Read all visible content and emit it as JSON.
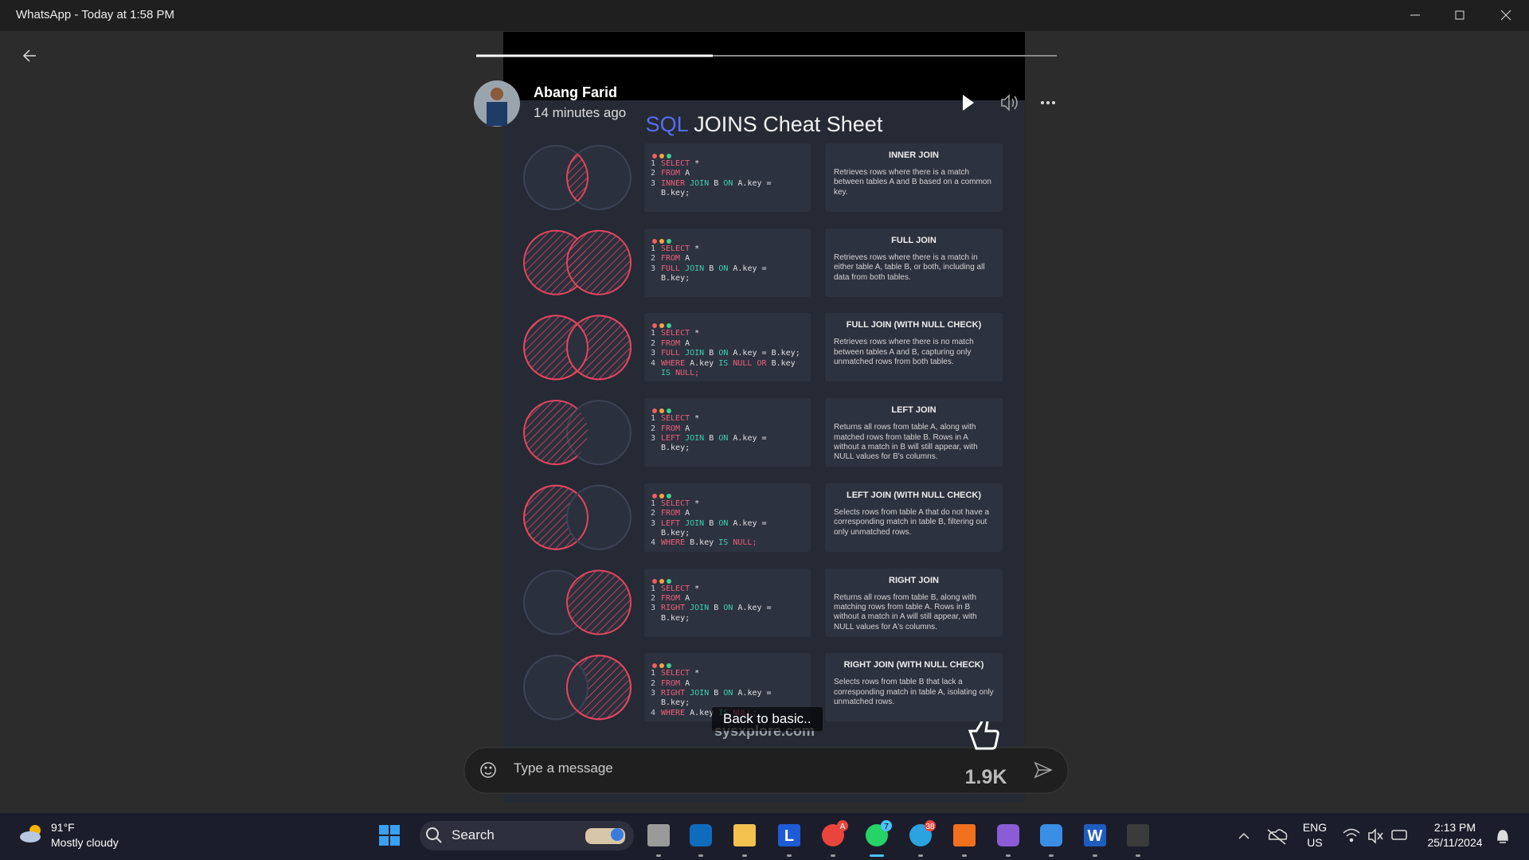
{
  "window": {
    "title": "WhatsApp - Today at 1:58 PM"
  },
  "status": {
    "author": "Abang Farid",
    "time": "14 minutes ago",
    "caption": "Back to basic..",
    "likes": "1.9K"
  },
  "sheet": {
    "title_highlight": "SQL",
    "title": "JOINS Cheat Sheet",
    "watermark": "sysxplore.com",
    "joins": [
      {
        "name": "INNER JOIN",
        "code": [
          {
            "num": 1,
            "text": "SELECT *"
          },
          {
            "num": 2,
            "text": "FROM A"
          },
          {
            "num": 3,
            "text": "INNER JOIN B ON A.key ="
          },
          {
            "text": "B.key;"
          }
        ],
        "description": "Retrieves rows where there is a match between tables A and B based on a common key."
      },
      {
        "name": "FULL JOIN",
        "code": [
          {
            "num": 1,
            "text": "SELECT *"
          },
          {
            "num": 2,
            "text": "FROM A"
          },
          {
            "num": 3,
            "text": "FULL JOIN B ON A.key ="
          },
          {
            "text": "B.key;"
          }
        ],
        "description": "Retrieves rows where there is a match in either table A, table B, or both, including all data from both tables."
      },
      {
        "name": "FULL JOIN (WITH NULL CHECK)",
        "code": [
          {
            "num": 1,
            "text": "SELECT *"
          },
          {
            "num": 2,
            "text": "FROM A"
          },
          {
            "num": 3,
            "text": "FULL JOIN B ON A.key = B.key;"
          },
          {
            "num": 4,
            "text": "WHERE A.key IS NULL OR B.key"
          },
          {
            "text": "IS NULL;"
          }
        ],
        "description": "Retrieves rows where there is no match between tables A and B, capturing only unmatched rows from both tables."
      },
      {
        "name": "LEFT JOIN",
        "code": [
          {
            "num": 1,
            "text": "SELECT *"
          },
          {
            "num": 2,
            "text": "FROM A"
          },
          {
            "num": 3,
            "text": "LEFT JOIN B ON A.key ="
          },
          {
            "text": "B.key;"
          }
        ],
        "description": "Returns all rows from table A, along with matched rows from table B. Rows in A without a match in B will still appear, with NULL values for B's columns."
      },
      {
        "name": "LEFT JOIN (WITH NULL CHECK)",
        "code": [
          {
            "num": 1,
            "text": "SELECT *"
          },
          {
            "num": 2,
            "text": "FROM A"
          },
          {
            "num": 3,
            "text": "LEFT JOIN B ON A.key ="
          },
          {
            "text": "B.key;"
          },
          {
            "num": 4,
            "text": "WHERE B.key IS NULL;"
          }
        ],
        "description": "Selects rows from table A that do not have a corresponding match in table B, filtering out only unmatched rows."
      },
      {
        "name": "RIGHT JOIN",
        "code": [
          {
            "num": 1,
            "text": "SELECT *"
          },
          {
            "num": 2,
            "text": "FROM A"
          },
          {
            "num": 3,
            "text": "RIGHT JOIN B ON A.key ="
          },
          {
            "text": "B.key;"
          }
        ],
        "description": "Returns all rows from table B, along with matching rows from table A. Rows in B without a match in A will still appear, with NULL values for A's columns."
      },
      {
        "name": "RIGHT JOIN (WITH NULL CHECK)",
        "code": [
          {
            "num": 1,
            "text": "SELECT *"
          },
          {
            "num": 2,
            "text": "FROM A"
          },
          {
            "num": 3,
            "text": "RIGHT JOIN B ON A.key ="
          },
          {
            "text": "B.key;"
          },
          {
            "num": 4,
            "text": "WHERE A.key IS NULL;"
          }
        ],
        "description": "Selects rows from table B that lack a corresponding match in table A, isolating only unmatched rows."
      }
    ]
  },
  "composer": {
    "placeholder": "Type a message"
  },
  "taskbar": {
    "weather_temp": "91°F",
    "weather_text": "Mostly cloudy",
    "search": "Search",
    "app_letters": [
      "L",
      "W"
    ],
    "badges": [
      "A",
      "7",
      "38"
    ],
    "lang": "ENG",
    "region": "US",
    "time": "2:13 PM",
    "date": "25/11/2024"
  }
}
